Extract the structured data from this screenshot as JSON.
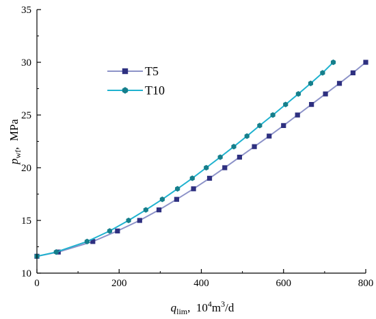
{
  "chart_data": {
    "type": "line",
    "xlim": [
      0,
      800
    ],
    "ylim": [
      10,
      35
    ],
    "x_ticks": [
      0,
      200,
      400,
      600,
      800
    ],
    "y_ticks": [
      10,
      15,
      20,
      25,
      30,
      35
    ],
    "xlabel": {
      "main": "q",
      "sub": "lim",
      "sep": ",  ",
      "unit_pre": "10",
      "unit_sup1": "4",
      "unit_mid": "m",
      "unit_sup2": "3",
      "unit_post": "/d"
    },
    "ylabel": {
      "main": "p",
      "sub": "wf",
      "sep": ",  ",
      "unit": "MPa"
    },
    "legend_position": "upper-left",
    "grid": false,
    "series": [
      {
        "name": "T5",
        "color": "#8c92c8",
        "marker_color": "#2e3080",
        "marker": "square",
        "points": [
          [
            0,
            11.6
          ],
          [
            52,
            12.0
          ],
          [
            136,
            13.0
          ],
          [
            196,
            14.0
          ],
          [
            250,
            15.0
          ],
          [
            297,
            16.0
          ],
          [
            340,
            17.0
          ],
          [
            381,
            18.0
          ],
          [
            420,
            19.0
          ],
          [
            457,
            20.0
          ],
          [
            493,
            21.0
          ],
          [
            529,
            22.0
          ],
          [
            565,
            23.0
          ],
          [
            600,
            24.0
          ],
          [
            634,
            25.0
          ],
          [
            668,
            26.0
          ],
          [
            702,
            27.0
          ],
          [
            736,
            28.0
          ],
          [
            769,
            29.0
          ],
          [
            800,
            30.0
          ]
        ]
      },
      {
        "name": "T10",
        "color": "#1fb2cf",
        "marker_color": "#157f8c",
        "marker": "hexagon",
        "points": [
          [
            0,
            11.6
          ],
          [
            47,
            12.0
          ],
          [
            122,
            13.0
          ],
          [
            177,
            14.0
          ],
          [
            223,
            15.0
          ],
          [
            265,
            16.0
          ],
          [
            305,
            17.0
          ],
          [
            342,
            18.0
          ],
          [
            378,
            19.0
          ],
          [
            412,
            20.0
          ],
          [
            446,
            21.0
          ],
          [
            479,
            22.0
          ],
          [
            511,
            23.0
          ],
          [
            542,
            24.0
          ],
          [
            574,
            25.0
          ],
          [
            605,
            26.0
          ],
          [
            636,
            27.0
          ],
          [
            666,
            28.0
          ],
          [
            695,
            29.0
          ],
          [
            721,
            30.0
          ]
        ]
      }
    ]
  }
}
